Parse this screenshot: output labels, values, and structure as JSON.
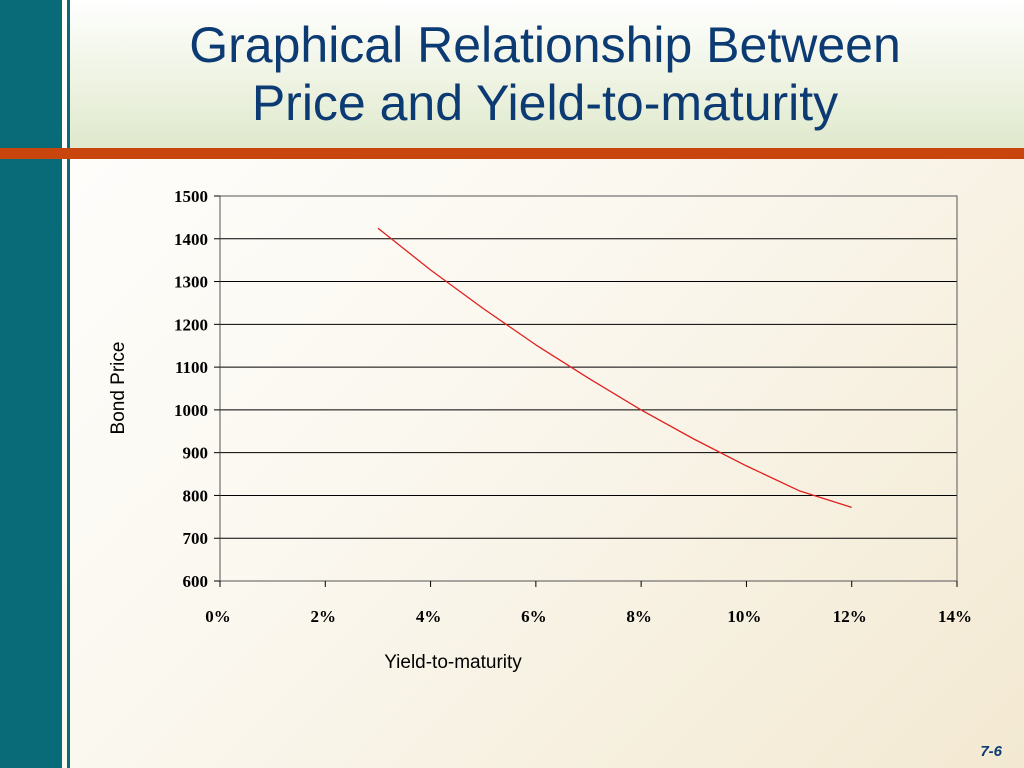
{
  "slide": {
    "title_lines": [
      "Graphical Relationship Between",
      "Price and Yield-to-maturity"
    ],
    "page_number": "7-6",
    "colors": {
      "title": "#0c3a73",
      "side_bar": "#0a6b78",
      "rule": "#c8460e",
      "series_line": "#e02020"
    }
  },
  "chart_data": {
    "type": "line",
    "title": "",
    "xlabel": "Yield-to-maturity",
    "ylabel": "Bond Price",
    "xlim": [
      0,
      14
    ],
    "ylim": [
      600,
      1500
    ],
    "x_ticks": [
      0,
      2,
      4,
      6,
      8,
      10,
      12,
      14
    ],
    "x_tick_labels": [
      "0%",
      "2%",
      "4%",
      "6%",
      "8%",
      "10%",
      "12%",
      "14%"
    ],
    "y_ticks": [
      600,
      700,
      800,
      900,
      1000,
      1100,
      1200,
      1300,
      1400,
      1500
    ],
    "y_tick_labels": [
      "600",
      "700",
      "800",
      "900",
      "1000",
      "1100",
      "1200",
      "1300",
      "1400",
      "1500"
    ],
    "grid": "horizontal",
    "legend": "none",
    "series": [
      {
        "x": [
          3,
          4,
          5,
          6,
          7,
          8,
          9,
          10,
          11,
          12
        ],
        "y": [
          1425,
          1327,
          1237,
          1152,
          1074,
          1000,
          932,
          869,
          811,
          772
        ]
      }
    ]
  }
}
